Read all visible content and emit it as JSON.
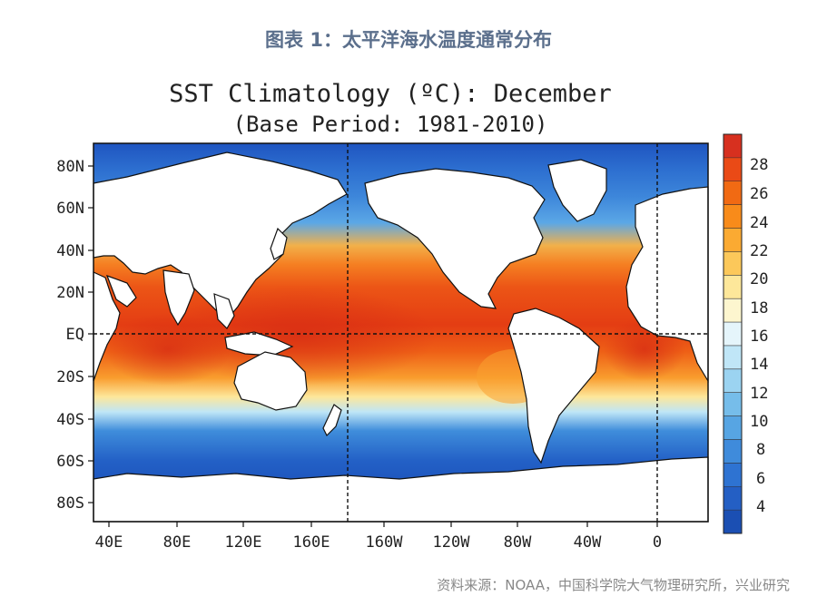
{
  "caption": "图表 1：太平洋海水温度通常分布",
  "map": {
    "title": "SST Climatology (ºC): December",
    "subtitle": "(Base Period: 1981-2010)",
    "lat_labels": [
      "80N",
      "60N",
      "40N",
      "20N",
      "EQ",
      "20S",
      "40S",
      "60S",
      "80S"
    ],
    "lon_labels": [
      "40E",
      "80E",
      "120E",
      "160E",
      "160W",
      "120W",
      "80W",
      "40W",
      "0"
    ],
    "colorbar": {
      "unit": "ºC",
      "ticks": [
        "28",
        "26",
        "24",
        "22",
        "20",
        "18",
        "16",
        "14",
        "12",
        "10",
        "8",
        "6",
        "4"
      ],
      "colors": [
        "#d7301f",
        "#ea4a16",
        "#f16a13",
        "#f88b1a",
        "#fbaa32",
        "#fcc85a",
        "#fde79a",
        "#fdf6cf",
        "#e5f5fb",
        "#c0e6f7",
        "#9bd3f1",
        "#76bdea",
        "#57a5e3",
        "#3f8bdb",
        "#2e73d2",
        "#245fc4",
        "#1b4fb3"
      ]
    }
  },
  "source": "资料来源：NOAA，中国科学院大气物理研究所，兴业研究"
}
